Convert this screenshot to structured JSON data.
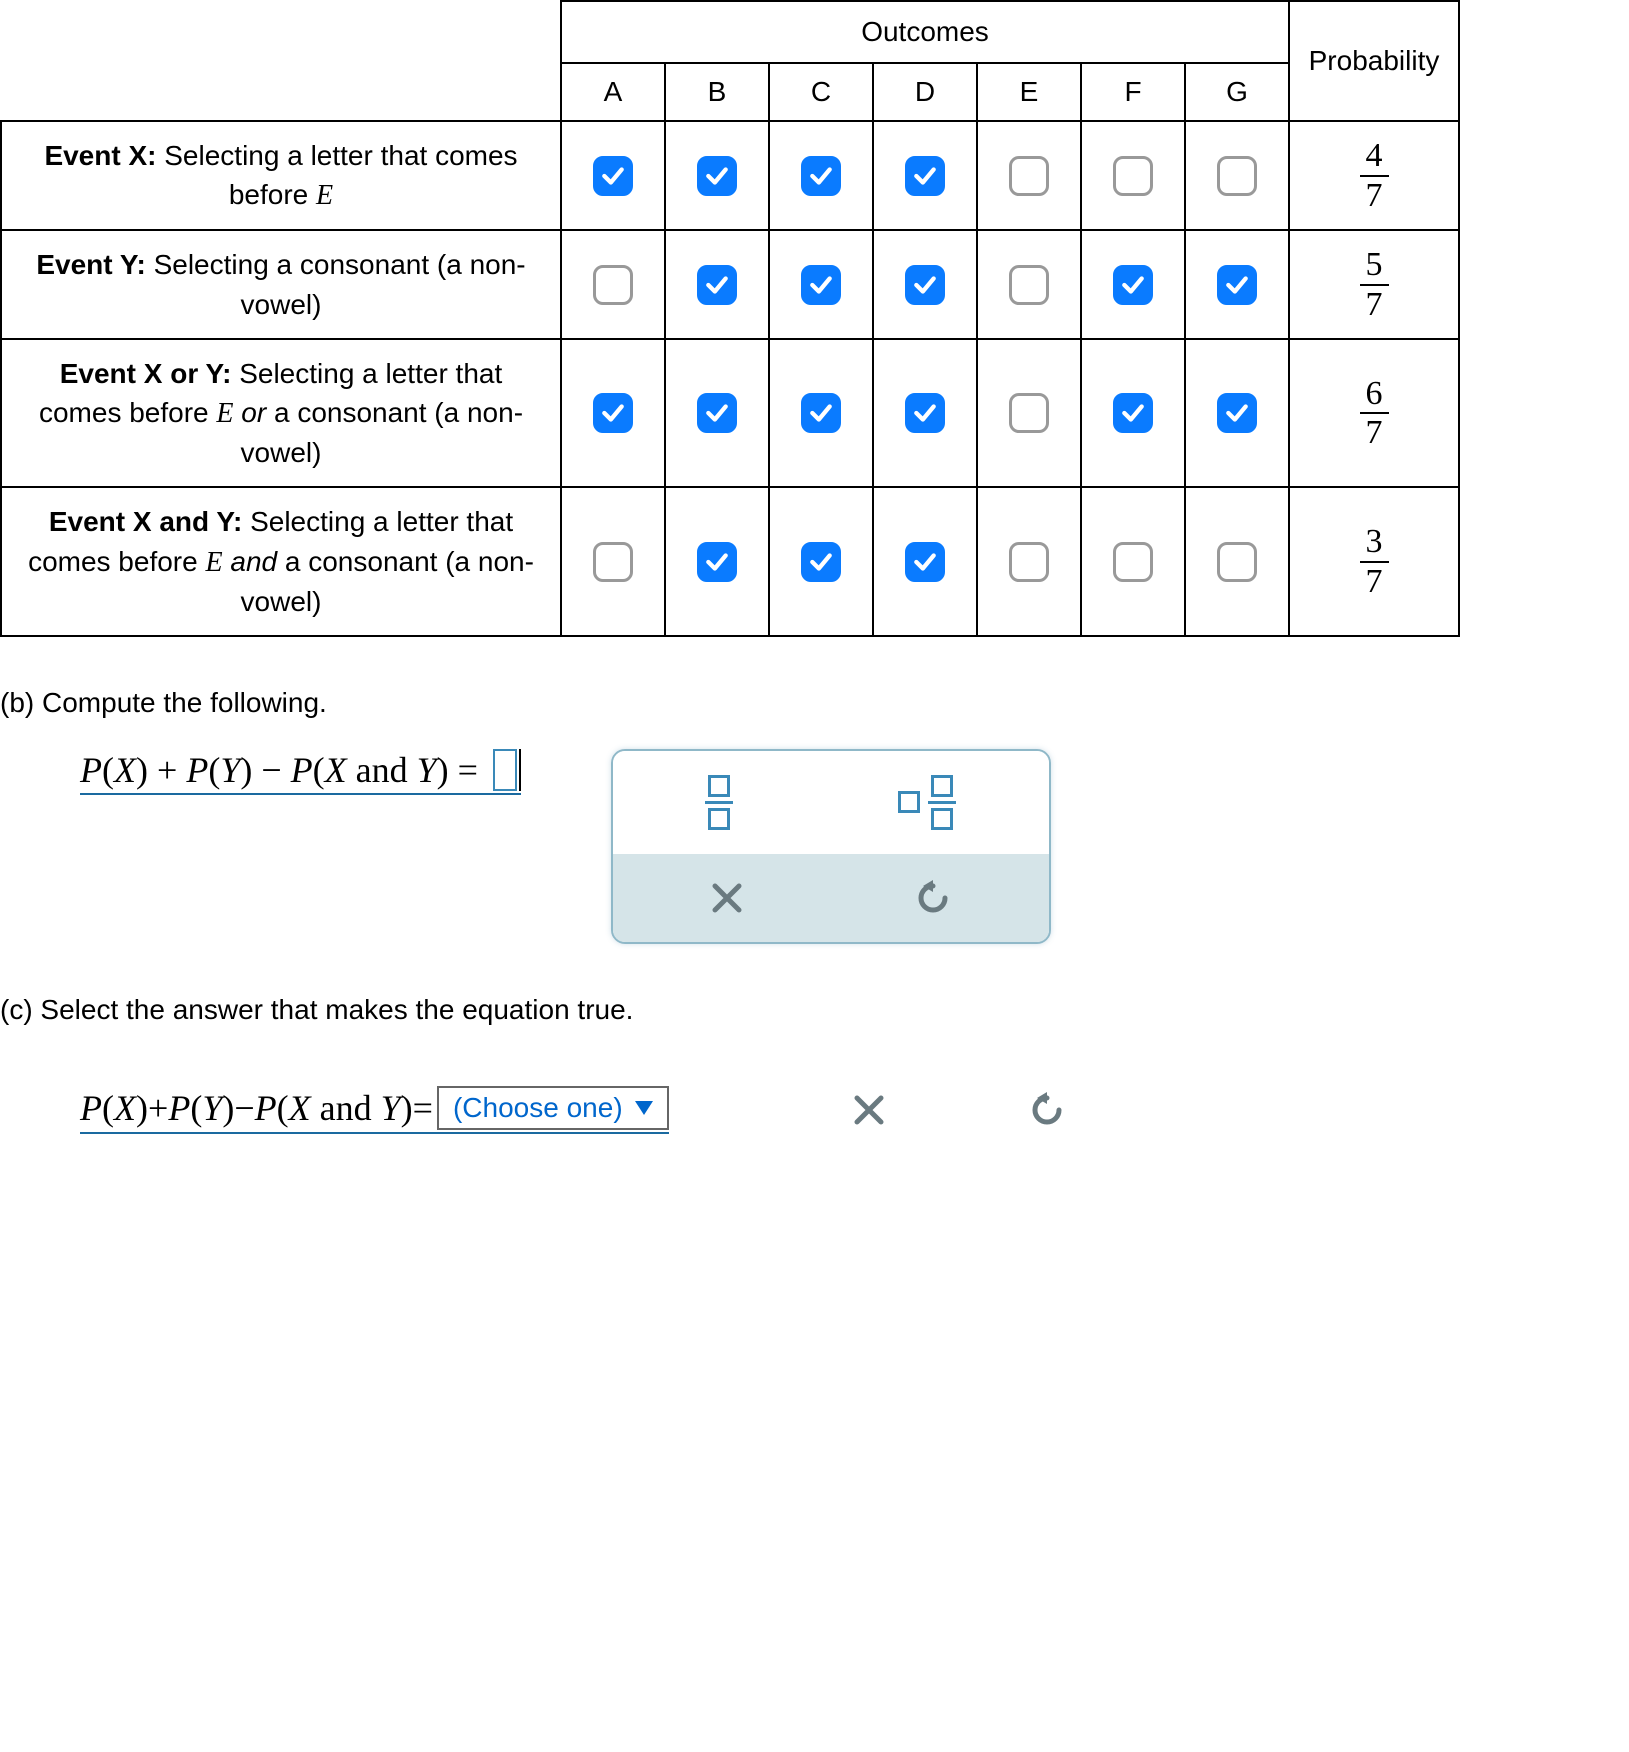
{
  "colors": {
    "checkbox_checked_bg": "#0a7bff",
    "checkbox_unchecked_border": "#999999",
    "formula_underline": "#1a6aa0",
    "panel_border": "#8fb8c8",
    "panel_bottom_bg": "#d5e4e8",
    "link_blue": "#0066cc",
    "icon_teal": "#3a89b8",
    "icon_gray": "#6a7a80"
  },
  "table": {
    "outcomes_label": "Outcomes",
    "probability_label": "Probability",
    "columns": [
      "A",
      "B",
      "C",
      "D",
      "E",
      "F",
      "G"
    ],
    "rows": [
      {
        "label_bold": "Event X:",
        "label_rest": " Selecting a letter that comes before ",
        "label_ital": "E",
        "label_tail": "",
        "checks": [
          true,
          true,
          true,
          true,
          false,
          false,
          false
        ],
        "prob_num": "4",
        "prob_den": "7"
      },
      {
        "label_bold": "Event Y:",
        "label_rest": " Selecting a consonant (a non-vowel)",
        "label_ital": "",
        "label_tail": "",
        "checks": [
          false,
          true,
          true,
          true,
          false,
          true,
          true
        ],
        "prob_num": "5",
        "prob_den": "7"
      },
      {
        "label_bold": "Event X or Y:",
        "label_rest": " Selecting a letter that comes before ",
        "label_ital": "E",
        "label_tail_ital": "or",
        "label_tail": " a consonant (a non-vowel)",
        "checks": [
          true,
          true,
          true,
          true,
          false,
          true,
          true
        ],
        "prob_num": "6",
        "prob_den": "7"
      },
      {
        "label_bold": "Event X and Y:",
        "label_rest": " Selecting a letter that comes before ",
        "label_ital": "E",
        "label_tail_ital": "and",
        "label_tail": " a consonant (a non-vowel)",
        "checks": [
          false,
          true,
          true,
          true,
          false,
          false,
          false
        ],
        "prob_num": "3",
        "prob_den": "7"
      }
    ]
  },
  "partB": {
    "prompt": "(b) Compute the following.",
    "formula_plain": "P(X) + P(Y) − P(X and Y) = "
  },
  "partC": {
    "prompt": "(c) Select the answer that makes the equation true.",
    "formula_plain": "P(X)+P(Y)−P(X and Y)=",
    "choose_label": "(Choose one)"
  },
  "icons": {
    "close": "close-icon",
    "undo": "undo-icon",
    "fraction": "fraction-template-icon",
    "mixed": "mixed-number-template-icon"
  }
}
